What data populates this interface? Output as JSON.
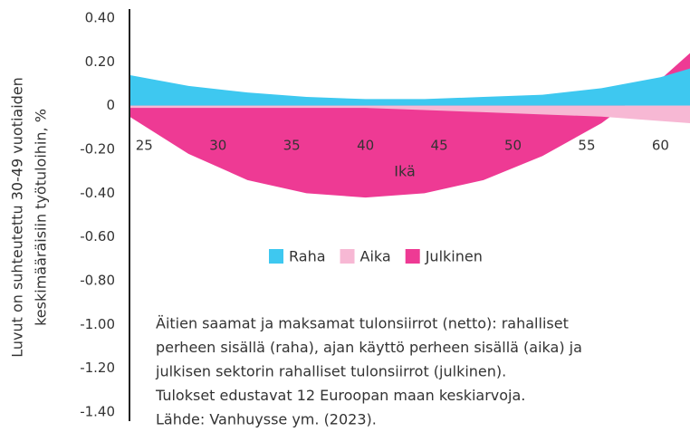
{
  "chart_data": {
    "type": "area",
    "xlabel": "Ikä",
    "ylabel": [
      "Luvut on suhteutettu 30-49 vuotiaiden",
      "keskimääräisiin työtuloihin, %"
    ],
    "x": [
      24,
      28,
      32,
      36,
      40,
      44,
      48,
      52,
      56,
      60,
      62
    ],
    "series": [
      {
        "name": "Julkinen",
        "color": "#ee3a94",
        "values": [
          -0.05,
          -0.22,
          -0.34,
          -0.4,
          -0.42,
          -0.4,
          -0.34,
          -0.23,
          -0.08,
          0.12,
          0.24
        ]
      },
      {
        "name": "Raha",
        "color": "#3ec8f0",
        "values": [
          0.14,
          0.09,
          0.06,
          0.04,
          0.03,
          0.03,
          0.04,
          0.05,
          0.08,
          0.13,
          0.17
        ]
      },
      {
        "name": "Aika",
        "color": "#f7b8d4",
        "values": [
          -0.01,
          -0.01,
          -0.01,
          -0.01,
          -0.01,
          -0.02,
          -0.03,
          -0.04,
          -0.05,
          -0.07,
          -0.08
        ]
      }
    ],
    "legend_order": [
      "Raha",
      "Aika",
      "Julkinen"
    ],
    "xlim": [
      24,
      62
    ],
    "xticks": [
      25,
      30,
      35,
      40,
      45,
      50,
      55,
      60
    ],
    "ylim": [
      -1.4,
      0.4
    ],
    "yticks": [
      {
        "value": 0.4,
        "label": "0.40"
      },
      {
        "value": 0.2,
        "label": "0.20"
      },
      0,
      {
        "value": -0.2,
        "label": "-0.20"
      },
      {
        "value": -0.4,
        "label": "-0.40"
      },
      {
        "value": -0.6,
        "label": "-0.60"
      },
      {
        "value": -0.8,
        "label": "-0.80"
      },
      {
        "value": -1.0,
        "label": "-1.00"
      },
      {
        "value": -1.2,
        "label": "-1.20"
      },
      {
        "value": -1.4,
        "label": "-1.40"
      }
    ],
    "note": [
      "Äitien saamat ja maksamat tulonsiirrot (netto): rahalliset",
      "perheen sisällä (raha), ajan käyttö perheen sisällä (aika) ja",
      "julkisen sektorin rahalliset tulonsiirrot (julkinen).",
      "Tulokset edustavat 12 Euroopan maan keskiarvoja.",
      "Lähde: Vanhuysse ym. (2023)."
    ]
  }
}
